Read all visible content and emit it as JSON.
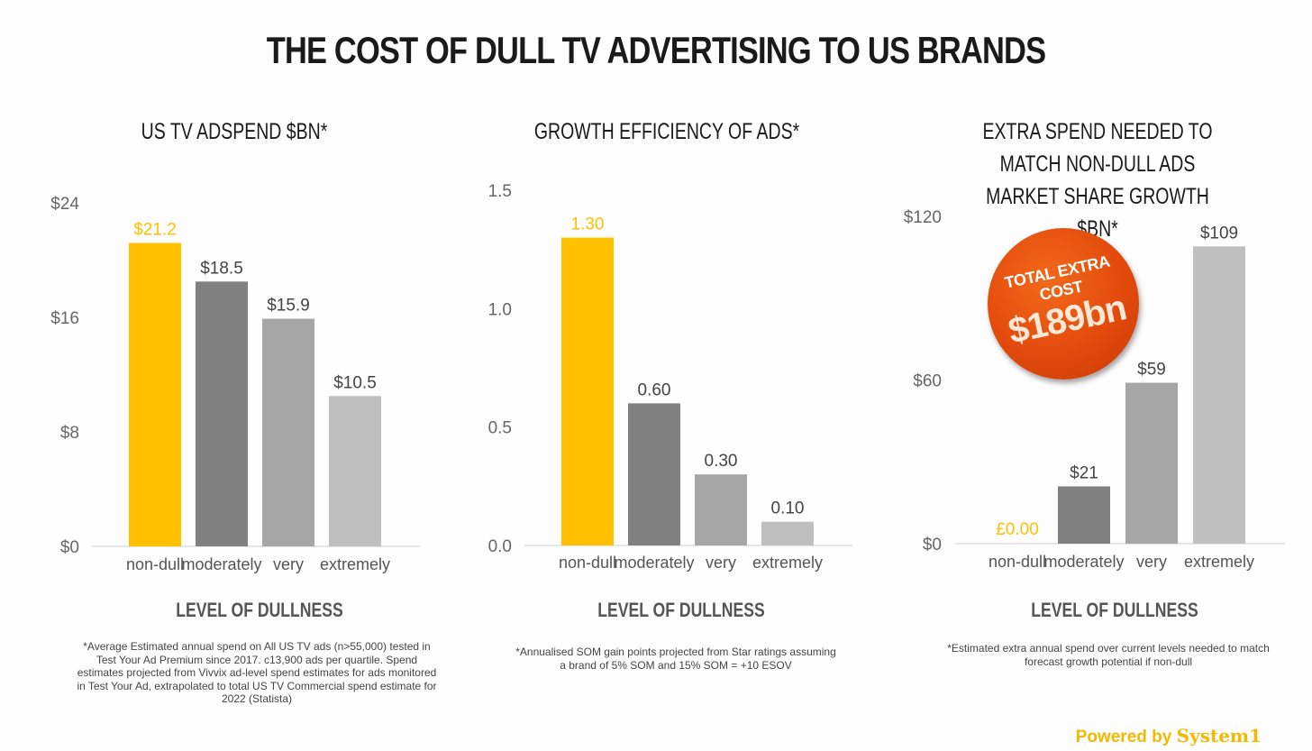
{
  "title": "THE COST OF DULL TV ADVERTISING TO US BRANDS",
  "colors": {
    "highlight": "#ffc000",
    "dark": "#808080",
    "mid": "#a6a6a6",
    "light": "#bfbfbf",
    "badge": "#e04a0c"
  },
  "chart_data": [
    {
      "type": "bar",
      "title": "US TV ADSPEND $BN*",
      "xlabel": "LEVEL OF DULLNESS",
      "ylabel": "",
      "categories": [
        "non-dull",
        "moderately",
        "very",
        "extremely"
      ],
      "values": [
        21.2,
        18.5,
        15.9,
        10.5
      ],
      "data_labels": [
        "$21.2",
        "$18.5",
        "$15.9",
        "$10.5"
      ],
      "ylim": [
        0,
        24
      ],
      "yticks": [
        0,
        8,
        16,
        24
      ],
      "ytick_labels": [
        "$0",
        "$8",
        "$16",
        "$24"
      ],
      "footnote": "*Average Estimated annual spend on All US TV ads (n>55,000) tested in Test Your Ad Premium since 2017. c13,900 ads per quartile. Spend estimates projected from Vivvix ad-level spend estimates for ads monitored in Test Your Ad, extrapolated to total US TV Commercial spend estimate for 2022 (Statista)"
    },
    {
      "type": "bar",
      "title": "GROWTH EFFICIENCY OF ADS*",
      "xlabel": "LEVEL OF DULLNESS",
      "ylabel": "",
      "categories": [
        "non-dull",
        "moderately",
        "very",
        "extremely"
      ],
      "values": [
        1.3,
        0.6,
        0.3,
        0.1
      ],
      "data_labels": [
        "1.30",
        "0.60",
        "0.30",
        "0.10"
      ],
      "ylim": [
        0,
        1.5
      ],
      "yticks": [
        0,
        0.5,
        1.0,
        1.5
      ],
      "ytick_labels": [
        "0.0",
        "0.5",
        "1.0",
        "1.5"
      ],
      "footnote": "*Annualised SOM gain points projected from Star ratings assuming a brand of 5% SOM and 15% SOM = +10 ESOV"
    },
    {
      "type": "bar",
      "title": "EXTRA SPEND NEEDED TO MATCH NON-DULL ADS MARKET SHARE GROWTH $BN*",
      "xlabel": "LEVEL OF DULLNESS",
      "ylabel": "",
      "categories": [
        "non-dull",
        "moderately",
        "very",
        "extremely"
      ],
      "values": [
        0,
        21,
        59,
        109
      ],
      "data_labels": [
        "£0.00",
        "$21",
        "$59",
        "$109"
      ],
      "ylim": [
        0,
        120
      ],
      "yticks": [
        0,
        60,
        120
      ],
      "ytick_labels": [
        "$0",
        "$60",
        "$120"
      ],
      "footnote": "*Estimated extra annual spend over current levels needed to match forecast growth potential if non-dull",
      "annotation": {
        "line1": "TOTAL EXTRA COST",
        "line2": "$189bn"
      }
    }
  ],
  "powered_by": {
    "prefix": "Powered by",
    "brand": "System1"
  }
}
